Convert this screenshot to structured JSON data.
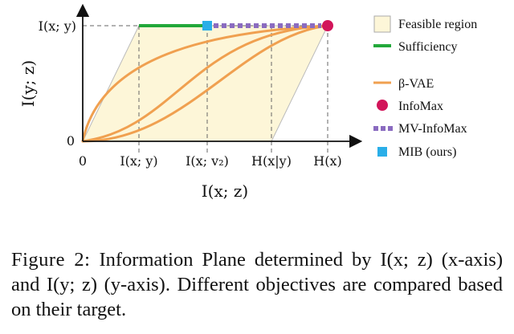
{
  "axes": {
    "y_top_label": "I(x; y)",
    "y_zero_label": "0",
    "y_title": "I(y; z)",
    "x_title": "I(x; z)",
    "x_ticks": [
      "0",
      "I(x; y)",
      "I(x; v₂)",
      "H(x|y)",
      "H(x)"
    ]
  },
  "legend": {
    "feasible": "Feasible region",
    "sufficiency": "Sufficiency",
    "beta_vae": "β-VAE",
    "infomax": "InfoMax",
    "mv_infomax": "MV-InfoMax",
    "mib": "MIB (ours)"
  },
  "colors": {
    "feasible_fill": "#fdf6d8",
    "sufficiency": "#22a83a",
    "beta_vae": "#f0a050",
    "infomax": "#d2155a",
    "mv_infomax": "#8a6bc0",
    "mib": "#2aaee8"
  },
  "caption": {
    "label": "Figure 2:",
    "text": "Information Plane determined by I(x; z) (x-axis) and I(y; z) (y-axis). Different objectives are compared based on their target."
  }
}
